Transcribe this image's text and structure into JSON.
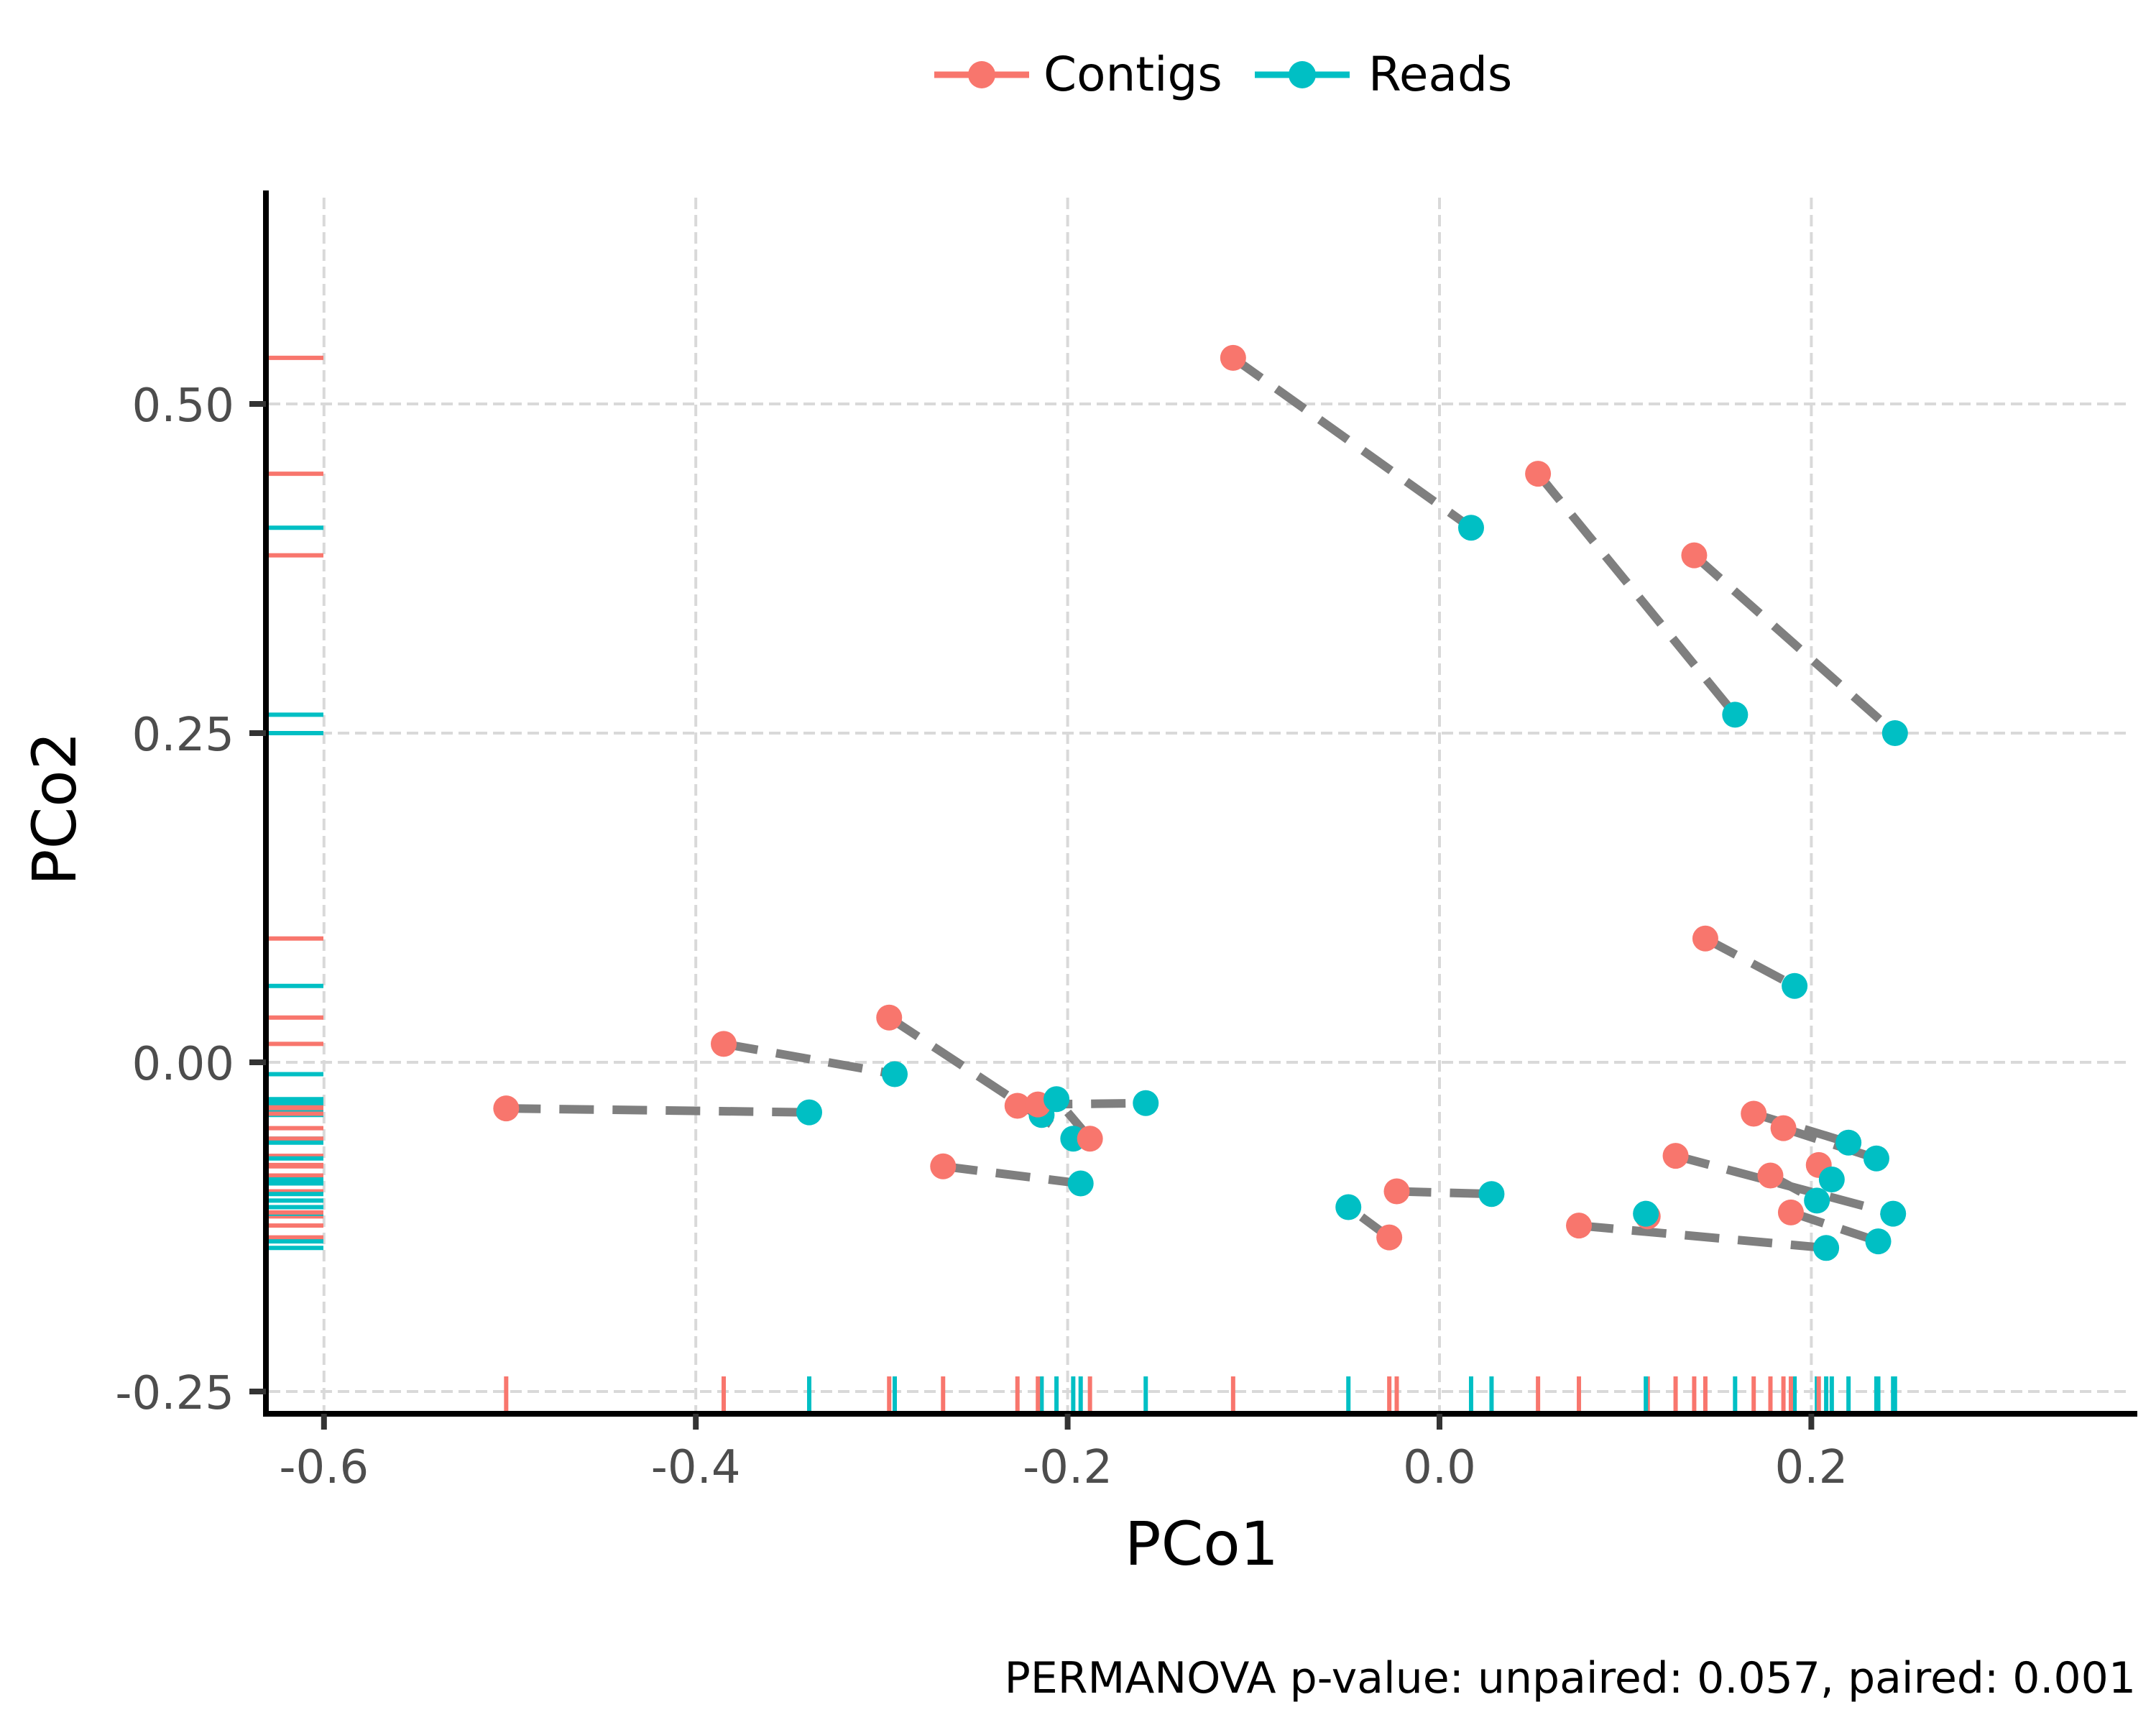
{
  "chart_data": {
    "type": "scatter",
    "title": "",
    "xlabel": "PCo1",
    "ylabel": "PCo2",
    "xlim": [
      -0.631,
      0.375
    ],
    "ylim": [
      -0.266,
      0.66
    ],
    "xticks": [
      -0.6,
      -0.4,
      -0.2,
      0.0,
      0.2
    ],
    "xtick_labels": [
      "-0.6",
      "-0.4",
      "-0.2",
      "0.0",
      "0.2"
    ],
    "yticks": [
      -0.25,
      0.0,
      0.25,
      0.5
    ],
    "ytick_labels": [
      "-0.25",
      "0.00",
      "0.25",
      "0.50"
    ],
    "grid": true,
    "legend_position": "top",
    "caption": "PERMANOVA p-value: unpaired: 0.057, paired: 0.001",
    "series": [
      {
        "name": "Contigs",
        "color": "#F8766D"
      },
      {
        "name": "Reads",
        "color": "#00BFC4"
      }
    ],
    "pair_line_color": "#7f7f7f",
    "rugs": true,
    "pairs": [
      {
        "contigs": [
          -0.111,
          0.535
        ],
        "reads": [
          0.017,
          0.406
        ]
      },
      {
        "contigs": [
          0.053,
          0.447
        ],
        "reads": [
          0.159,
          0.264
        ]
      },
      {
        "contigs": [
          0.137,
          0.385
        ],
        "reads": [
          0.245,
          0.25
        ]
      },
      {
        "contigs": [
          0.143,
          0.094
        ],
        "reads": [
          0.191,
          0.058
        ]
      },
      {
        "contigs": [
          -0.502,
          -0.035
        ],
        "reads": [
          -0.339,
          -0.038
        ]
      },
      {
        "contigs": [
          -0.385,
          0.014
        ],
        "reads": [
          -0.293,
          -0.009
        ]
      },
      {
        "contigs": [
          -0.296,
          0.034
        ],
        "reads": [
          -0.197,
          -0.058
        ]
      },
      {
        "contigs": [
          -0.267,
          -0.079
        ],
        "reads": [
          -0.193,
          -0.092
        ]
      },
      {
        "contigs": [
          -0.227,
          -0.033
        ],
        "reads": [
          -0.214,
          -0.04
        ]
      },
      {
        "contigs": [
          -0.216,
          -0.032
        ],
        "reads": [
          -0.158,
          -0.031
        ]
      },
      {
        "contigs": [
          -0.188,
          -0.058
        ],
        "reads": [
          -0.206,
          -0.028
        ]
      },
      {
        "contigs": [
          -0.027,
          -0.133
        ],
        "reads": [
          -0.049,
          -0.11
        ]
      },
      {
        "contigs": [
          -0.023,
          -0.098
        ],
        "reads": [
          0.028,
          -0.1
        ]
      },
      {
        "contigs": [
          0.075,
          -0.124
        ],
        "reads": [
          0.208,
          -0.141
        ]
      },
      {
        "contigs": [
          0.112,
          -0.117
        ],
        "reads": [
          0.111,
          -0.115
        ]
      },
      {
        "contigs": [
          0.127,
          -0.071
        ],
        "reads": [
          0.244,
          -0.115
        ]
      },
      {
        "contigs": [
          0.169,
          -0.039
        ],
        "reads": [
          0.22,
          -0.061
        ]
      },
      {
        "contigs": [
          0.185,
          -0.05
        ],
        "reads": [
          0.235,
          -0.073
        ]
      },
      {
        "contigs": [
          0.178,
          -0.086
        ],
        "reads": [
          0.203,
          -0.105
        ]
      },
      {
        "contigs": [
          0.204,
          -0.078
        ],
        "reads": [
          0.211,
          -0.089
        ]
      },
      {
        "contigs": [
          0.189,
          -0.114
        ],
        "reads": [
          0.236,
          -0.136
        ]
      }
    ]
  }
}
